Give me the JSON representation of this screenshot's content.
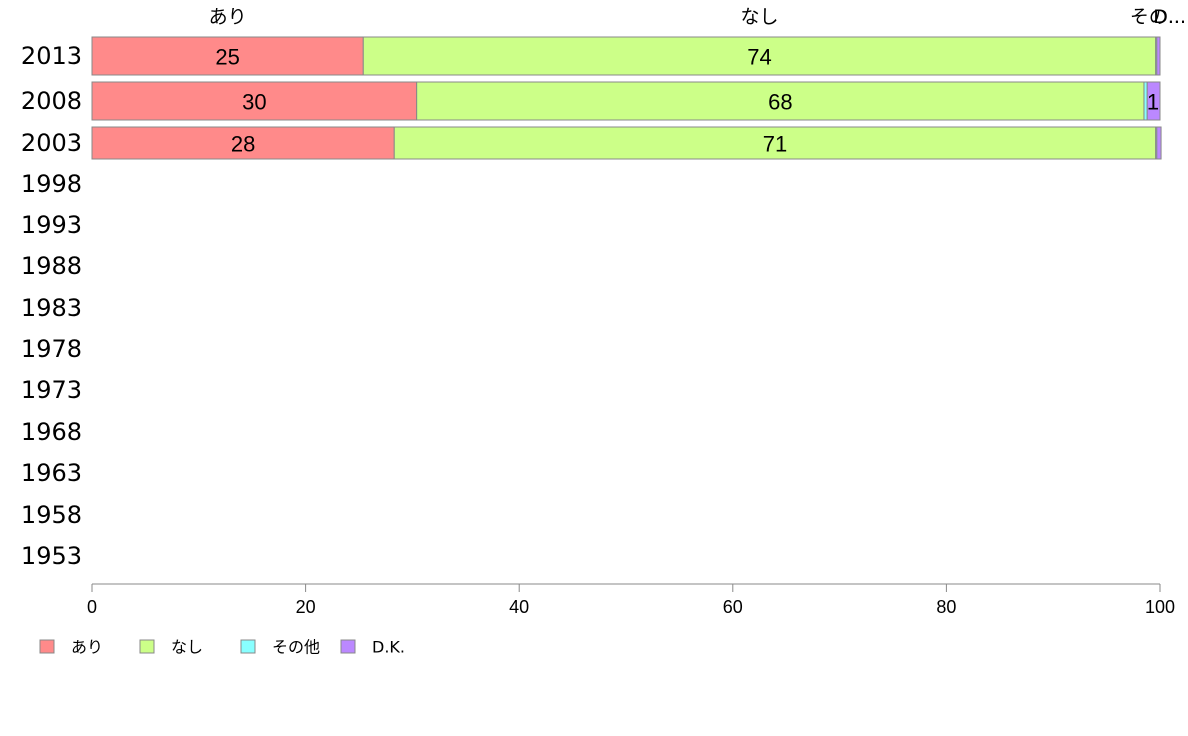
{
  "chart_data": {
    "type": "bar",
    "orientation": "horizontal",
    "stacked": true,
    "title": "",
    "xlabel": "",
    "ylabel": "",
    "xlim": [
      0,
      100
    ],
    "x_ticks": [
      0,
      20,
      40,
      60,
      80,
      100
    ],
    "categories": [
      "2013",
      "2008",
      "2003",
      "1998",
      "1993",
      "1988",
      "1983",
      "1978",
      "1973",
      "1968",
      "1963",
      "1958",
      "1953"
    ],
    "series": [
      {
        "name": "あり",
        "color": "#ff8a8a",
        "values": [
          25.4,
          30.4,
          28.3,
          null,
          null,
          null,
          null,
          null,
          null,
          null,
          null,
          null,
          null
        ]
      },
      {
        "name": "なし",
        "color": "#ccff88",
        "values": [
          74.2,
          68.1,
          71.3,
          null,
          null,
          null,
          null,
          null,
          null,
          null,
          null,
          null,
          null
        ]
      },
      {
        "name": "その他",
        "color": "#88ffff",
        "values": [
          0.1,
          0.3,
          0.1,
          null,
          null,
          null,
          null,
          null,
          null,
          null,
          null,
          null,
          null
        ]
      },
      {
        "name": "D.K.",
        "color": "#bb88ff",
        "values": [
          0.3,
          1.2,
          0.4,
          null,
          null,
          null,
          null,
          null,
          null,
          null,
          null,
          null,
          null
        ]
      }
    ],
    "data_labels": [
      {
        "category": "2013",
        "series": "あり",
        "text": "25"
      },
      {
        "category": "2013",
        "series": "なし",
        "text": "74"
      },
      {
        "category": "2008",
        "series": "あり",
        "text": "30"
      },
      {
        "category": "2008",
        "series": "なし",
        "text": "68"
      },
      {
        "category": "2008",
        "series": "D.K.",
        "text": "1"
      },
      {
        "category": "2003",
        "series": "あり",
        "text": "28"
      },
      {
        "category": "2003",
        "series": "なし",
        "text": "71"
      }
    ],
    "top_labels": [
      "あり",
      "なし",
      "その...",
      "D..."
    ],
    "legend": {
      "placement": "bottom-left",
      "items": [
        "あり",
        "なし",
        "その他",
        "D.K."
      ]
    },
    "grid": false
  }
}
